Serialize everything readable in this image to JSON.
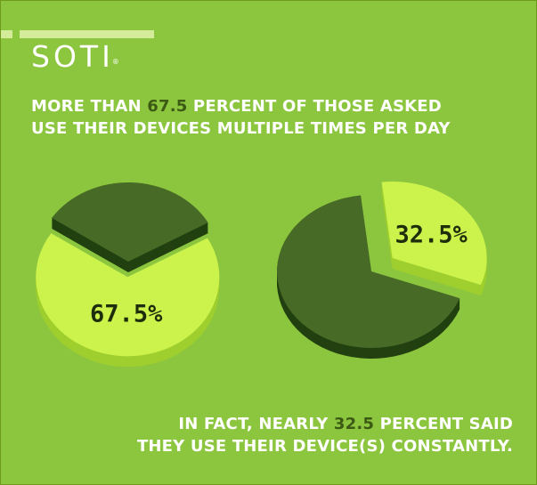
{
  "brand": {
    "name": "SOTI",
    "mark": "®"
  },
  "headline": {
    "before": "MORE THAN ",
    "highlight": "67.5",
    "line1_rest": " PERCENT OF THOSE ASKED",
    "line2": "USE THEIR DEVICES MULTIPLE TIMES PER DAY"
  },
  "footer": {
    "line1_before": "IN FACT, NEARLY ",
    "highlight": "32.5",
    "line1_rest": " PERCENT SAID",
    "line2": "THEY USE THEIR DEVICE(S) CONSTANTLY."
  },
  "colors": {
    "background": "#8cc63f",
    "slice_highlight": "#ccf24c",
    "slice_highlight_side": "#9fcf2e",
    "slice_rest": "#476a26",
    "slice_rest_side": "#224010",
    "text_highlight": "#3c5a14"
  },
  "chart_data": [
    {
      "type": "pie",
      "title": "",
      "slices": [
        {
          "label": "67.5%",
          "value": 67.5,
          "highlighted": true
        },
        {
          "label": "",
          "value": 32.5,
          "highlighted": false
        }
      ]
    },
    {
      "type": "pie",
      "title": "",
      "slices": [
        {
          "label": "32.5%",
          "value": 32.5,
          "highlighted": true
        },
        {
          "label": "",
          "value": 67.5,
          "highlighted": false
        }
      ]
    }
  ]
}
